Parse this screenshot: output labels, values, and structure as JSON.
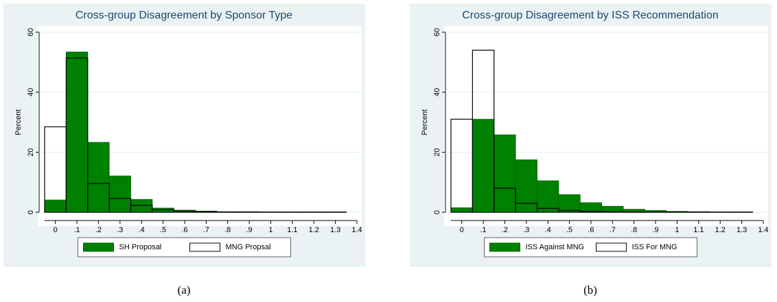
{
  "chart_data": [
    {
      "type": "histogram",
      "title": "Cross-group Disagreement by Sponsor Type",
      "ylabel": "Percent",
      "caption": "(a)",
      "bins": [
        -0.05,
        0.05,
        0.15,
        0.25,
        0.35,
        0.45,
        0.55,
        0.65,
        0.75,
        0.85,
        0.95,
        1.05,
        1.15,
        1.25,
        1.35
      ],
      "series": [
        {
          "name": "SH Proposal",
          "color": "#008000",
          "values": [
            4.1,
            53.4,
            23.3,
            12.1,
            4.3,
            1.4,
            0.7,
            0.4,
            0.2,
            0.2,
            0.1,
            0.1,
            0.1,
            0.1
          ]
        },
        {
          "name": "MNG Propsal",
          "color": "none",
          "values": [
            28.5,
            51.4,
            9.6,
            4.6,
            2.3,
            0.9,
            0.4,
            0.2,
            0.1,
            0.1,
            0.1,
            0.1,
            0.1,
            0.1
          ]
        }
      ],
      "xlim": [
        -0.05,
        1.4
      ],
      "ylim": [
        0,
        60
      ],
      "xticks": [
        0,
        {
          "value": 0.1,
          "label": ".1"
        },
        {
          "value": 0.2,
          "label": ".2"
        },
        {
          "value": 0.3,
          "label": ".3"
        },
        {
          "value": 0.4,
          "label": ".4"
        },
        {
          "value": 0.5,
          "label": ".5"
        },
        {
          "value": 0.6,
          "label": ".6"
        },
        {
          "value": 0.7,
          "label": ".7"
        },
        {
          "value": 0.8,
          "label": ".8"
        },
        {
          "value": 0.9,
          "label": ".9"
        },
        1,
        1.1,
        1.2,
        1.3,
        1.4
      ],
      "yticks": [
        0,
        20,
        40,
        60
      ],
      "grid": true,
      "legend": "bottom"
    },
    {
      "type": "histogram",
      "title": "Cross-group Disagreement by ISS Recommendation",
      "ylabel": "Percent",
      "caption": "(b)",
      "bins": [
        -0.05,
        0.05,
        0.15,
        0.25,
        0.35,
        0.45,
        0.55,
        0.65,
        0.75,
        0.85,
        0.95,
        1.05,
        1.15,
        1.25,
        1.35
      ],
      "series": [
        {
          "name": "ISS Against MNG",
          "color": "#008000",
          "values": [
            1.5,
            31,
            25.8,
            17.5,
            10.5,
            5.9,
            3.2,
            2,
            1,
            0.6,
            0.3,
            0.2,
            0.1,
            0.1
          ]
        },
        {
          "name": "ISS For MNG",
          "color": "none",
          "values": [
            31,
            54,
            8,
            3,
            1.3,
            0.6,
            0.3,
            0.2,
            0.1,
            0.1,
            0.1,
            0.1,
            0.1,
            0.1
          ]
        }
      ],
      "xlim": [
        -0.05,
        1.4
      ],
      "ylim": [
        0,
        60
      ],
      "xticks": [
        0,
        {
          "value": 0.1,
          "label": ".1"
        },
        {
          "value": 0.2,
          "label": ".2"
        },
        {
          "value": 0.3,
          "label": ".3"
        },
        {
          "value": 0.4,
          "label": ".4"
        },
        {
          "value": 0.5,
          "label": ".5"
        },
        {
          "value": 0.6,
          "label": ".6"
        },
        {
          "value": 0.7,
          "label": ".7"
        },
        {
          "value": 0.8,
          "label": ".8"
        },
        {
          "value": 0.9,
          "label": ".9"
        },
        1,
        1.1,
        1.2,
        1.3,
        1.4
      ],
      "yticks": [
        0,
        20,
        40,
        60
      ],
      "grid": true,
      "legend": "bottom"
    }
  ]
}
